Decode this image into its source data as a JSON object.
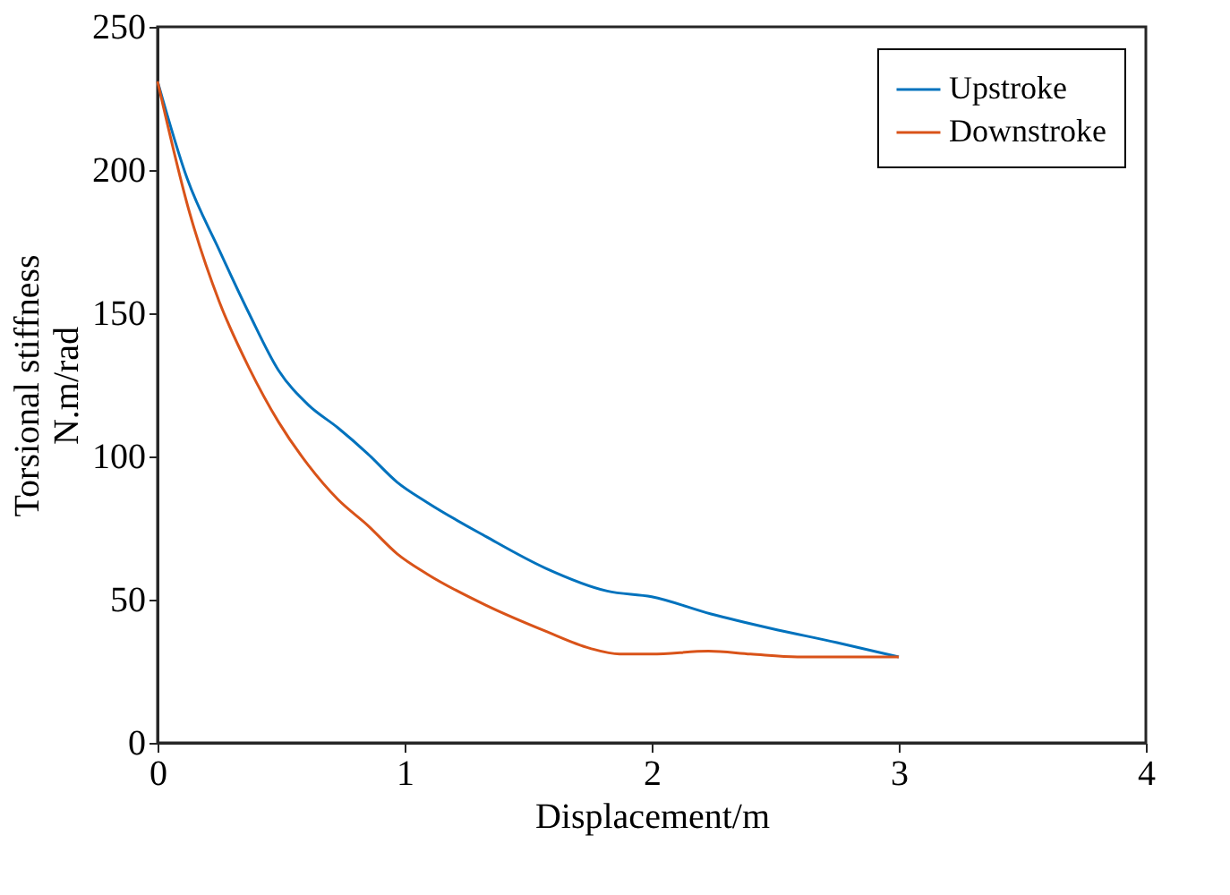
{
  "chart_data": {
    "type": "line",
    "xlabel": "Displacement/m",
    "ylabel": "Torsional stiffness\nN.m/rad",
    "xlim": [
      0,
      4
    ],
    "xticks": [
      0,
      1,
      2,
      3,
      4
    ],
    "ylim": [
      0,
      250
    ],
    "yticks": [
      0,
      50,
      100,
      150,
      200,
      250
    ],
    "grid": false,
    "legend": "top right",
    "line_style": "solid",
    "marker": "none",
    "series": [
      {
        "name": "Upstroke",
        "color": "#0072bd",
        "x": [
          0,
          0.12,
          0.25,
          0.37,
          0.49,
          0.61,
          0.73,
          0.85,
          0.97,
          1.09,
          1.33,
          1.57,
          1.82,
          2.0,
          2.24,
          2.48,
          2.75,
          3.0
        ],
        "values": [
          231,
          197,
          172,
          150,
          130,
          118,
          110,
          101,
          91,
          84,
          72,
          61,
          53,
          51,
          45,
          40,
          35,
          30
        ]
      },
      {
        "name": "Downstroke",
        "color": "#d95319",
        "x": [
          0,
          0.13,
          0.25,
          0.37,
          0.49,
          0.61,
          0.73,
          0.85,
          0.97,
          1.09,
          1.33,
          1.57,
          1.75,
          1.87,
          2.0,
          2.23,
          2.4,
          2.59,
          2.8,
          3.0
        ],
        "values": [
          231,
          185,
          154,
          131,
          112,
          97,
          85,
          76,
          66,
          59,
          48,
          39,
          33,
          31,
          31,
          32,
          31,
          30,
          30,
          30
        ]
      }
    ]
  }
}
